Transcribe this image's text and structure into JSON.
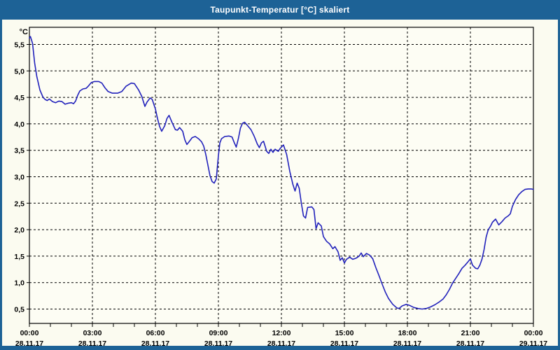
{
  "window": {
    "title": "Taupunkt-Temperatur [°C] skaliert"
  },
  "colors": {
    "titlebar": "#1d6296",
    "window_border": "#1d6296",
    "title_text": "#ffffff",
    "background": "#fbfbf0",
    "plot_background": "#fdfdf4",
    "grid": "#000000",
    "axis": "#000000",
    "label_text": "#000000",
    "line": "#2222bb"
  },
  "chart_data": {
    "type": "line",
    "title": "Taupunkt-Temperatur [°C] skaliert",
    "ylabel": "°C",
    "grid": "dashed",
    "legend": "none",
    "x_axis": {
      "range_hours": [
        0,
        24
      ],
      "minor_tick_every_hours": 1,
      "major_ticks": [
        {
          "hour": 0,
          "time": "00:00",
          "date": "28.11.17"
        },
        {
          "hour": 3,
          "time": "03:00",
          "date": "28.11.17"
        },
        {
          "hour": 6,
          "time": "06:00",
          "date": "28.11.17"
        },
        {
          "hour": 9,
          "time": "09:00",
          "date": "28.11.17"
        },
        {
          "hour": 12,
          "time": "12:00",
          "date": "28.11.17"
        },
        {
          "hour": 15,
          "time": "15:00",
          "date": "28.11.17"
        },
        {
          "hour": 18,
          "time": "18:00",
          "date": "28.11.17"
        },
        {
          "hour": 21,
          "time": "21:00",
          "date": "28.11.17"
        },
        {
          "hour": 24,
          "time": "00:00",
          "date": "29.11.17"
        }
      ]
    },
    "y_axis": {
      "unit": "°C",
      "range": [
        0.2,
        5.83
      ],
      "ticks": [
        {
          "value": 5.5,
          "label": "5,5"
        },
        {
          "value": 5.0,
          "label": "5,0"
        },
        {
          "value": 4.5,
          "label": "4,5"
        },
        {
          "value": 4.0,
          "label": "4,0"
        },
        {
          "value": 3.5,
          "label": "3,5"
        },
        {
          "value": 3.0,
          "label": "3,0"
        },
        {
          "value": 2.5,
          "label": "2,5"
        },
        {
          "value": 2.0,
          "label": "2,0"
        },
        {
          "value": 1.5,
          "label": "1,5"
        },
        {
          "value": 1.0,
          "label": "1,0"
        },
        {
          "value": 0.5,
          "label": "0,5"
        }
      ]
    },
    "series": [
      {
        "name": "Taupunkt-Temperatur",
        "color": "#2222bb",
        "points": [
          [
            0.0,
            5.62
          ],
          [
            0.05,
            5.65
          ],
          [
            0.15,
            5.52
          ],
          [
            0.25,
            5.15
          ],
          [
            0.35,
            4.9
          ],
          [
            0.5,
            4.64
          ],
          [
            0.65,
            4.5
          ],
          [
            0.75,
            4.46
          ],
          [
            0.85,
            4.44
          ],
          [
            0.95,
            4.47
          ],
          [
            1.1,
            4.42
          ],
          [
            1.25,
            4.4
          ],
          [
            1.4,
            4.43
          ],
          [
            1.55,
            4.42
          ],
          [
            1.7,
            4.37
          ],
          [
            1.85,
            4.39
          ],
          [
            2.0,
            4.4
          ],
          [
            2.1,
            4.38
          ],
          [
            2.2,
            4.43
          ],
          [
            2.3,
            4.54
          ],
          [
            2.4,
            4.62
          ],
          [
            2.55,
            4.66
          ],
          [
            2.7,
            4.67
          ],
          [
            2.8,
            4.71
          ],
          [
            2.95,
            4.78
          ],
          [
            3.1,
            4.8
          ],
          [
            3.3,
            4.8
          ],
          [
            3.45,
            4.77
          ],
          [
            3.6,
            4.68
          ],
          [
            3.75,
            4.61
          ],
          [
            3.95,
            4.58
          ],
          [
            4.2,
            4.58
          ],
          [
            4.4,
            4.61
          ],
          [
            4.6,
            4.71
          ],
          [
            4.85,
            4.77
          ],
          [
            5.0,
            4.76
          ],
          [
            5.2,
            4.64
          ],
          [
            5.35,
            4.52
          ],
          [
            5.5,
            4.33
          ],
          [
            5.6,
            4.41
          ],
          [
            5.75,
            4.49
          ],
          [
            5.85,
            4.46
          ],
          [
            6.0,
            4.28
          ],
          [
            6.1,
            4.1
          ],
          [
            6.2,
            3.95
          ],
          [
            6.3,
            3.86
          ],
          [
            6.45,
            3.97
          ],
          [
            6.55,
            4.1
          ],
          [
            6.65,
            4.16
          ],
          [
            6.8,
            4.02
          ],
          [
            6.95,
            3.89
          ],
          [
            7.05,
            3.88
          ],
          [
            7.15,
            3.93
          ],
          [
            7.3,
            3.86
          ],
          [
            7.4,
            3.7
          ],
          [
            7.5,
            3.61
          ],
          [
            7.6,
            3.66
          ],
          [
            7.75,
            3.74
          ],
          [
            7.9,
            3.76
          ],
          [
            8.05,
            3.72
          ],
          [
            8.2,
            3.66
          ],
          [
            8.3,
            3.58
          ],
          [
            8.4,
            3.42
          ],
          [
            8.5,
            3.22
          ],
          [
            8.6,
            3.02
          ],
          [
            8.7,
            2.91
          ],
          [
            8.8,
            2.88
          ],
          [
            8.9,
            2.96
          ],
          [
            9.0,
            3.4
          ],
          [
            9.07,
            3.64
          ],
          [
            9.15,
            3.72
          ],
          [
            9.3,
            3.76
          ],
          [
            9.5,
            3.77
          ],
          [
            9.65,
            3.75
          ],
          [
            9.75,
            3.65
          ],
          [
            9.85,
            3.56
          ],
          [
            9.95,
            3.72
          ],
          [
            10.05,
            3.92
          ],
          [
            10.15,
            4.01
          ],
          [
            10.25,
            4.03
          ],
          [
            10.4,
            3.96
          ],
          [
            10.55,
            3.89
          ],
          [
            10.7,
            3.77
          ],
          [
            10.85,
            3.62
          ],
          [
            10.95,
            3.55
          ],
          [
            11.05,
            3.64
          ],
          [
            11.15,
            3.67
          ],
          [
            11.3,
            3.48
          ],
          [
            11.4,
            3.44
          ],
          [
            11.5,
            3.52
          ],
          [
            11.6,
            3.46
          ],
          [
            11.7,
            3.52
          ],
          [
            11.85,
            3.48
          ],
          [
            11.95,
            3.54
          ],
          [
            12.1,
            3.6
          ],
          [
            12.25,
            3.42
          ],
          [
            12.4,
            3.1
          ],
          [
            12.55,
            2.85
          ],
          [
            12.65,
            2.73
          ],
          [
            12.75,
            2.88
          ],
          [
            12.85,
            2.78
          ],
          [
            12.95,
            2.5
          ],
          [
            13.05,
            2.26
          ],
          [
            13.15,
            2.22
          ],
          [
            13.25,
            2.42
          ],
          [
            13.45,
            2.43
          ],
          [
            13.55,
            2.38
          ],
          [
            13.65,
            2.02
          ],
          [
            13.75,
            2.13
          ],
          [
            13.9,
            2.07
          ],
          [
            14.0,
            1.87
          ],
          [
            14.15,
            1.78
          ],
          [
            14.3,
            1.73
          ],
          [
            14.45,
            1.64
          ],
          [
            14.55,
            1.68
          ],
          [
            14.7,
            1.58
          ],
          [
            14.8,
            1.42
          ],
          [
            14.9,
            1.47
          ],
          [
            15.0,
            1.37
          ],
          [
            15.1,
            1.44
          ],
          [
            15.25,
            1.48
          ],
          [
            15.4,
            1.44
          ],
          [
            15.55,
            1.46
          ],
          [
            15.7,
            1.5
          ],
          [
            15.8,
            1.56
          ],
          [
            15.9,
            1.49
          ],
          [
            16.05,
            1.55
          ],
          [
            16.2,
            1.52
          ],
          [
            16.35,
            1.45
          ],
          [
            16.5,
            1.28
          ],
          [
            16.65,
            1.13
          ],
          [
            16.8,
            0.97
          ],
          [
            16.95,
            0.82
          ],
          [
            17.1,
            0.7
          ],
          [
            17.3,
            0.59
          ],
          [
            17.5,
            0.52
          ],
          [
            17.6,
            0.51
          ],
          [
            17.75,
            0.56
          ],
          [
            17.95,
            0.59
          ],
          [
            18.1,
            0.57
          ],
          [
            18.3,
            0.53
          ],
          [
            18.5,
            0.51
          ],
          [
            18.7,
            0.5
          ],
          [
            18.9,
            0.51
          ],
          [
            19.1,
            0.54
          ],
          [
            19.3,
            0.58
          ],
          [
            19.5,
            0.63
          ],
          [
            19.7,
            0.69
          ],
          [
            19.85,
            0.77
          ],
          [
            20.0,
            0.87
          ],
          [
            20.15,
            0.99
          ],
          [
            20.3,
            1.08
          ],
          [
            20.45,
            1.17
          ],
          [
            20.6,
            1.27
          ],
          [
            20.75,
            1.33
          ],
          [
            20.9,
            1.4
          ],
          [
            21.0,
            1.45
          ],
          [
            21.1,
            1.33
          ],
          [
            21.25,
            1.27
          ],
          [
            21.35,
            1.26
          ],
          [
            21.45,
            1.33
          ],
          [
            21.55,
            1.44
          ],
          [
            21.65,
            1.62
          ],
          [
            21.75,
            1.86
          ],
          [
            21.85,
            2.0
          ],
          [
            21.95,
            2.06
          ],
          [
            22.05,
            2.14
          ],
          [
            22.2,
            2.2
          ],
          [
            22.35,
            2.09
          ],
          [
            22.5,
            2.15
          ],
          [
            22.65,
            2.22
          ],
          [
            22.8,
            2.26
          ],
          [
            22.9,
            2.3
          ],
          [
            23.0,
            2.44
          ],
          [
            23.15,
            2.57
          ],
          [
            23.3,
            2.66
          ],
          [
            23.45,
            2.72
          ],
          [
            23.6,
            2.76
          ],
          [
            23.75,
            2.77
          ],
          [
            23.9,
            2.77
          ],
          [
            24.0,
            2.76
          ]
        ]
      }
    ]
  }
}
